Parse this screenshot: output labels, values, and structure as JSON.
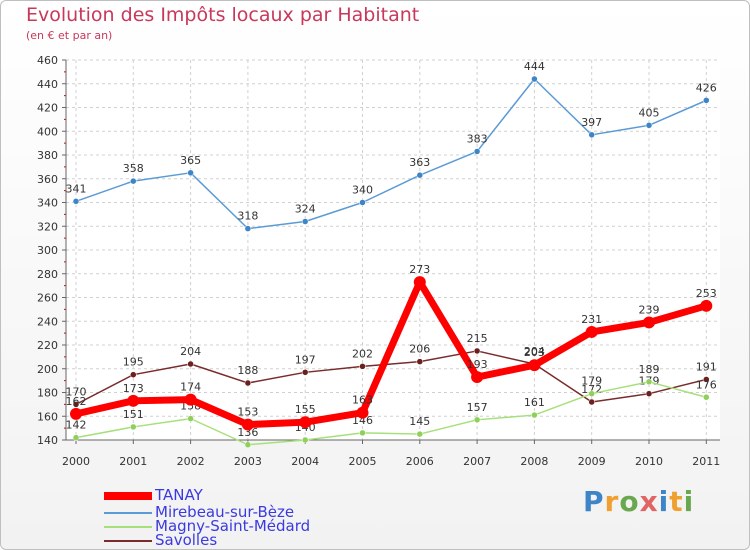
{
  "title": "Evolution des Impôts locaux par Habitant",
  "subtitle": "(en € et par an)",
  "logo_text": "Proxiti",
  "chart_data": {
    "type": "line",
    "categories": [
      "2000",
      "2001",
      "2002",
      "2003",
      "2004",
      "2005",
      "2006",
      "2007",
      "2008",
      "2009",
      "2010",
      "2011"
    ],
    "ylim": [
      140,
      460
    ],
    "ytick_step": 20,
    "grid": true,
    "legend_position": "bottom-left",
    "series": [
      {
        "name": "Mirebeau-sur-Bèze",
        "color": "#5b9bd5",
        "point_color": "#3d85c6",
        "values": [
          341,
          358,
          365,
          318,
          324,
          340,
          363,
          383,
          444,
          397,
          405,
          426
        ]
      },
      {
        "name": "Savolles",
        "color": "#7a2b2b",
        "point_color": "#6b1f1f",
        "values": [
          170,
          195,
          204,
          188,
          197,
          202,
          206,
          215,
          204,
          172,
          179,
          191
        ]
      },
      {
        "name": "Magny-Saint-Médard",
        "color": "#a6e07a",
        "point_color": "#8fd05a",
        "values": [
          142,
          151,
          158,
          136,
          140,
          146,
          145,
          157,
          161,
          179,
          189,
          176
        ]
      },
      {
        "name": "TANAY",
        "color": "#ff0000",
        "point_color": "#ff0000",
        "values": [
          162,
          173,
          174,
          153,
          155,
          163,
          273,
          193,
          203,
          231,
          239,
          253
        ]
      }
    ],
    "legend_order": [
      "TANAY",
      "Mirebeau-sur-Bèze",
      "Magny-Saint-Médard",
      "Savolles"
    ]
  }
}
